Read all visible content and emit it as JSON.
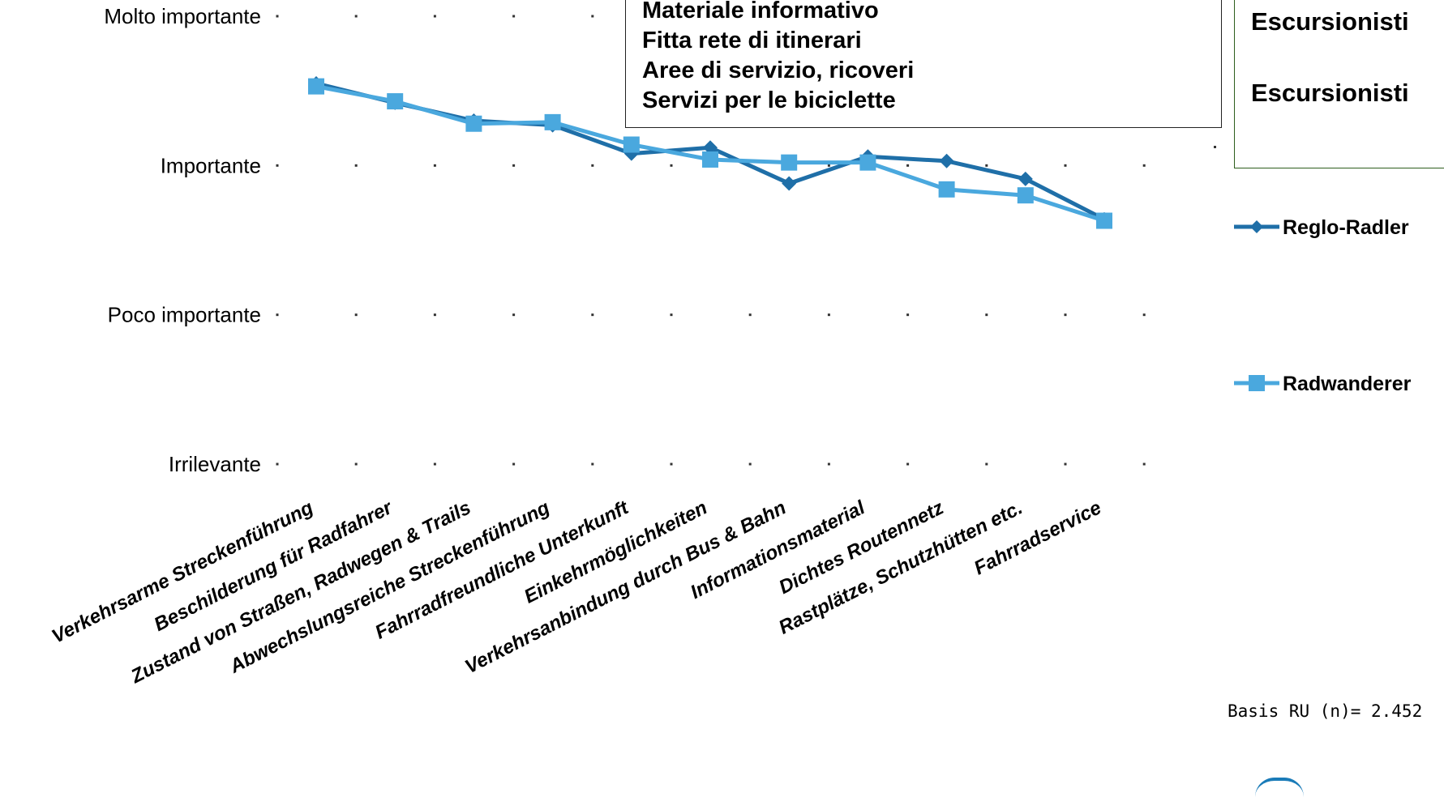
{
  "chart_data": {
    "type": "line",
    "y_scale_labels": [
      "Irrilevante",
      "Poco importante",
      "Importante",
      "Molto importante"
    ],
    "ylim": [
      1,
      4
    ],
    "categories": [
      "Verkehrsarme Streckenführung",
      "Beschilderung für Radfahrer",
      "Zustand von Straßen, Radwegen & Trails",
      "Abwechslungsreiche Streckenführung",
      "Fahrradfreundliche Unterkunft",
      "Einkehrmöglichkeiten",
      "Verkehrsanbindung durch Bus & Bahn",
      "Informationsmaterial",
      "Dichtes Routennetz",
      "Rastplätze, Schutzhütten etc.",
      "Fahrradservice"
    ],
    "series": [
      {
        "name": "Reglo-Radler",
        "color": "#1f6fa8",
        "marker": "diamond",
        "values": [
          3.55,
          3.42,
          3.3,
          3.27,
          3.08,
          3.12,
          2.88,
          3.06,
          3.03,
          2.91,
          2.64
        ]
      },
      {
        "name": "Radwanderer",
        "color": "#4aa8de",
        "marker": "square",
        "values": [
          3.53,
          3.43,
          3.28,
          3.29,
          3.14,
          3.04,
          3.02,
          3.02,
          2.84,
          2.8,
          2.63
        ]
      }
    ],
    "grid": "dotted",
    "legend_position": "right"
  },
  "overlay_box": {
    "lines": [
      "Materiale informativo",
      "Fitta rete di itinerari",
      "Aree di servizio, ricoveri",
      "Servizi per le biciclette"
    ]
  },
  "green_box": {
    "lines": [
      "Escursionisti",
      "Escursionisti"
    ]
  },
  "basis_note": "Basis RU (n)= 2.452"
}
